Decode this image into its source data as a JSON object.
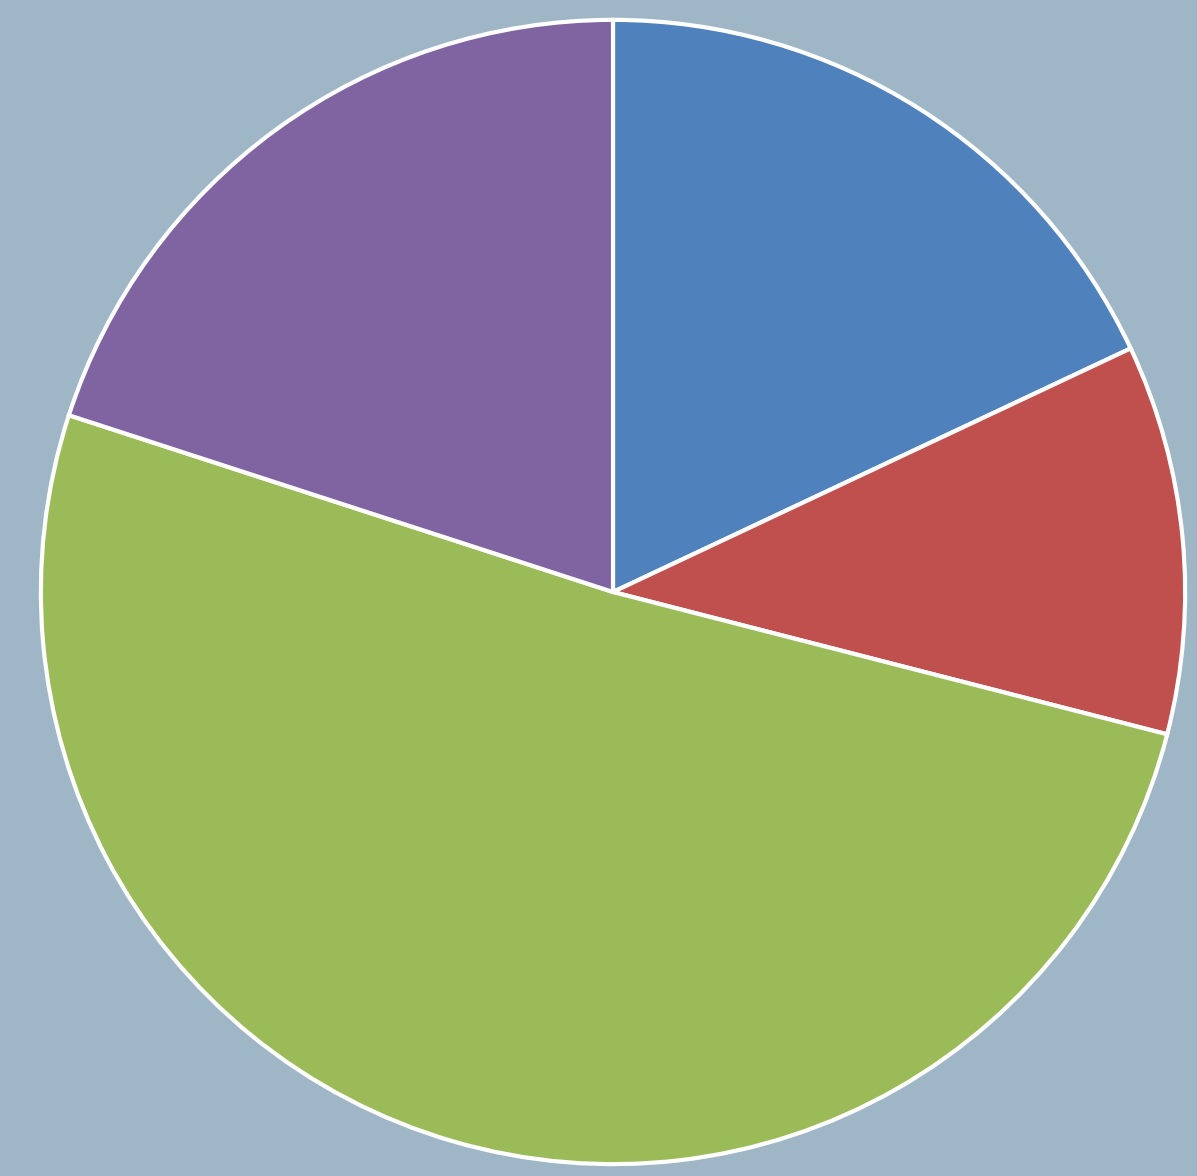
{
  "chart_data": {
    "type": "pie",
    "values": [
      18,
      11,
      51,
      20
    ],
    "colors": [
      "#4f81bd",
      "#c0504d",
      "#9bbb59",
      "#8064a2"
    ]
  }
}
